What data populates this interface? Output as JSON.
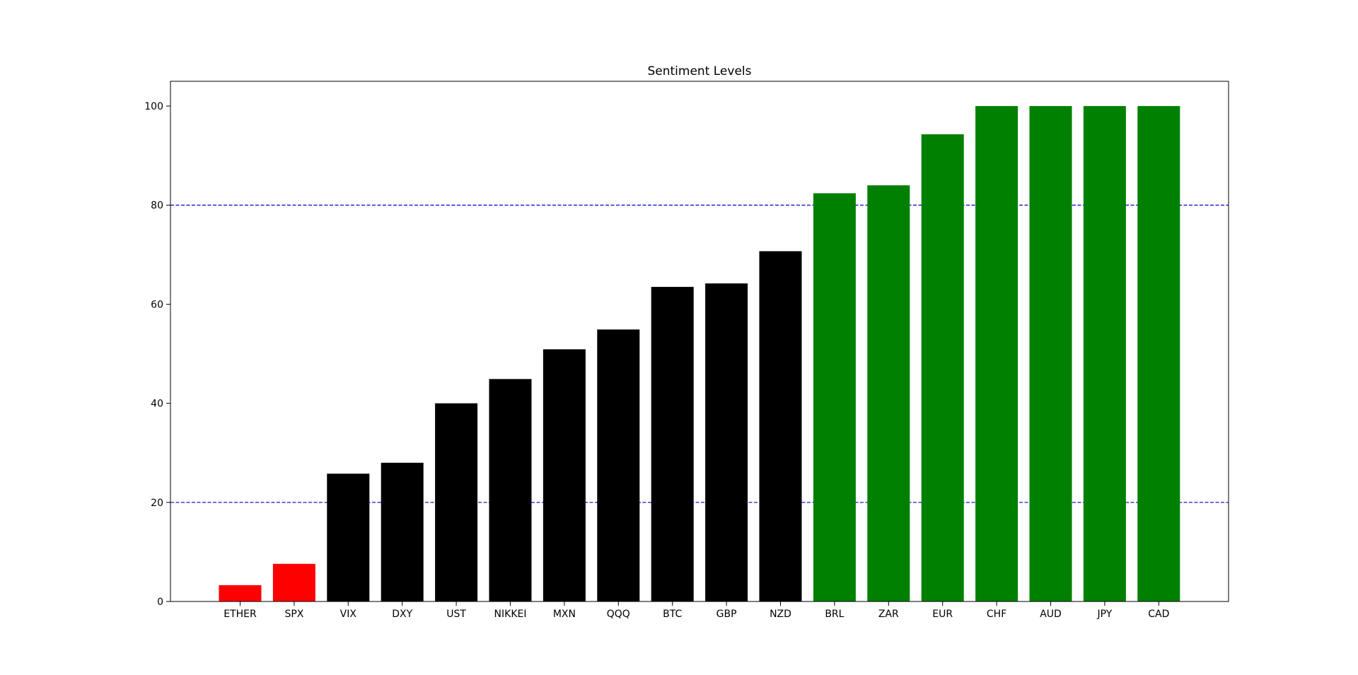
{
  "chart_data": {
    "type": "bar",
    "title": "Sentiment Levels",
    "xlabel": "",
    "ylabel": "",
    "ylim": [
      0,
      105
    ],
    "yticks": [
      0,
      20,
      40,
      60,
      80,
      100
    ],
    "categories": [
      "ETHER",
      "SPX",
      "VIX",
      "DXY",
      "UST",
      "NIKKEI",
      "MXN",
      "QQQ",
      "BTC",
      "GBP",
      "NZD",
      "BRL",
      "ZAR",
      "EUR",
      "CHF",
      "AUD",
      "JPY",
      "CAD"
    ],
    "values": [
      3.3,
      7.6,
      25.8,
      28.0,
      40.0,
      44.9,
      50.9,
      54.9,
      63.5,
      64.2,
      70.7,
      82.4,
      84.0,
      94.3,
      100,
      100,
      100,
      100
    ],
    "bar_colors": [
      "#ff0000",
      "#ff0000",
      "#000000",
      "#000000",
      "#000000",
      "#000000",
      "#000000",
      "#000000",
      "#000000",
      "#000000",
      "#000000",
      "#008000",
      "#008000",
      "#008000",
      "#008000",
      "#008000",
      "#008000",
      "#008000"
    ],
    "reference_lines": [
      {
        "y": 80,
        "color": "#0000cc",
        "style": "dashed"
      },
      {
        "y": 20,
        "color": "#0000cc",
        "style": "dashed"
      }
    ],
    "grid": false,
    "legend": "none"
  }
}
